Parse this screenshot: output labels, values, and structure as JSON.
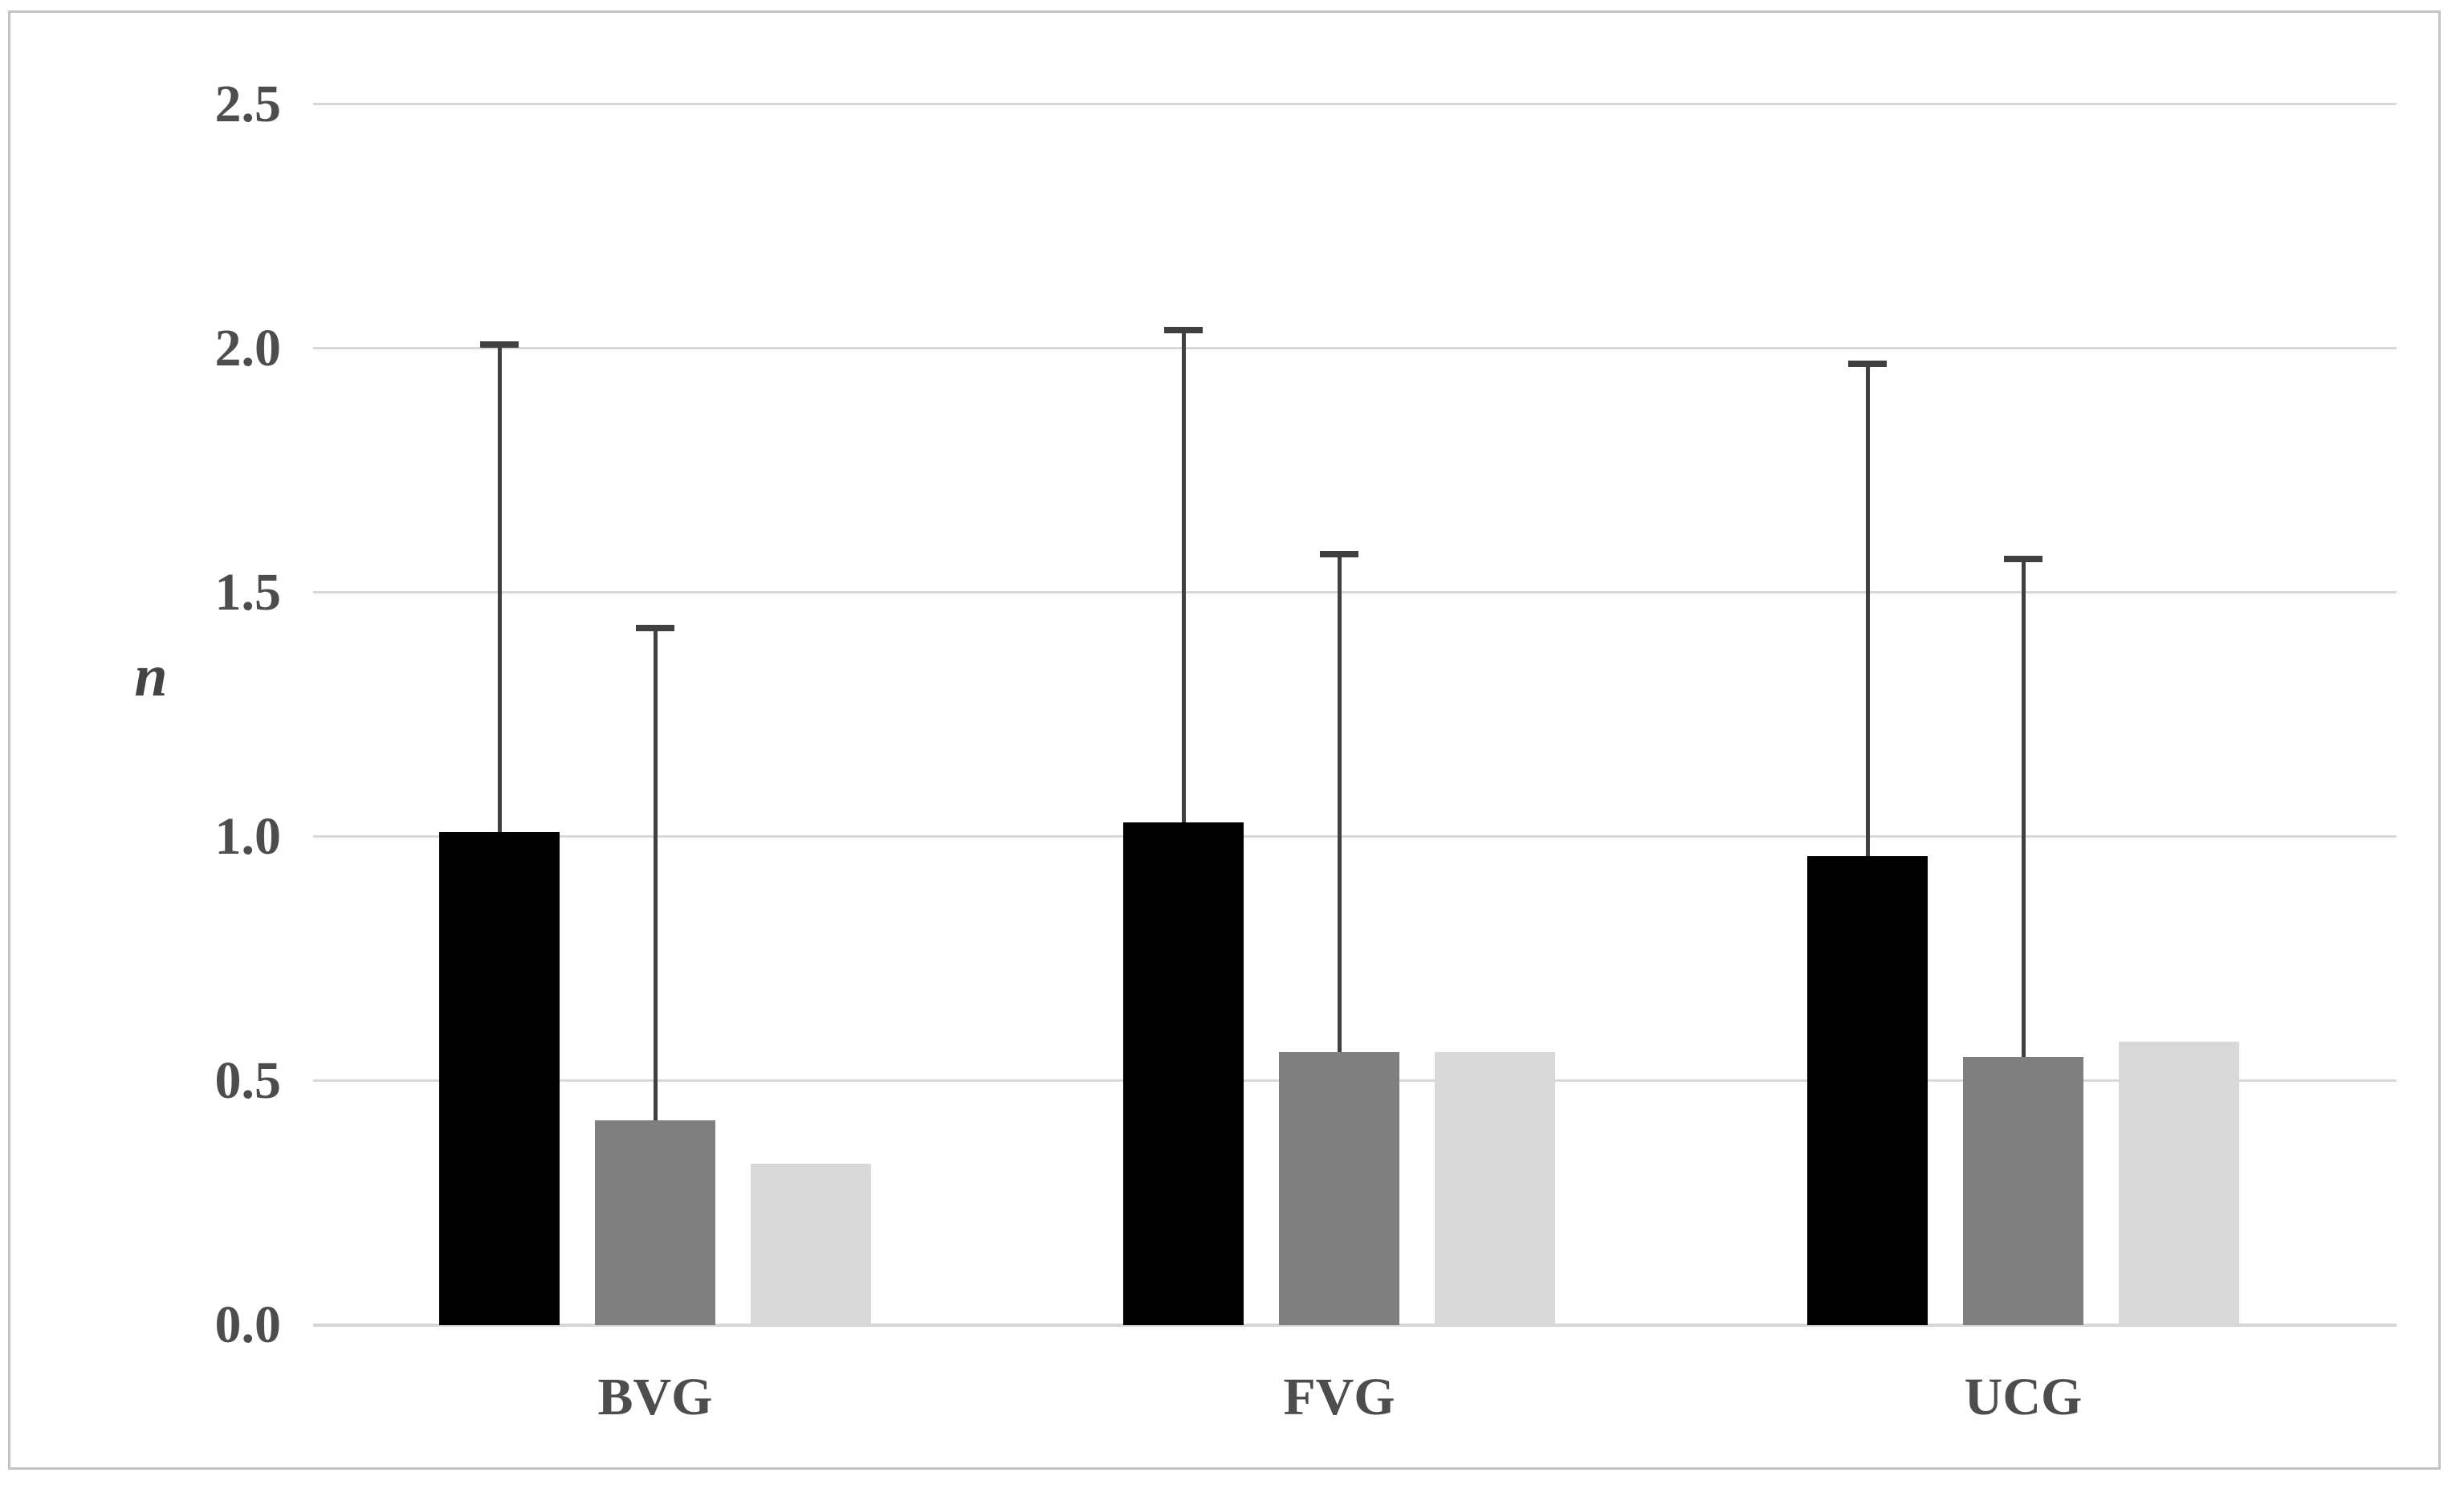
{
  "chart_data": {
    "type": "bar",
    "title": "",
    "xlabel": "",
    "ylabel": "n",
    "categories": [
      "BVG",
      "FVG",
      "UCG"
    ],
    "series": [
      {
        "name": "black-series",
        "color": "#000000",
        "values": [
          1.01,
          1.03,
          0.96
        ],
        "error_up": [
          1.0,
          1.01,
          1.01
        ]
      },
      {
        "name": "gray-series",
        "color": "#7f7f7f",
        "values": [
          0.42,
          0.56,
          0.55
        ],
        "error_up": [
          1.01,
          1.02,
          1.02
        ]
      },
      {
        "name": "light-gray-series",
        "color": "#d9d9d9",
        "values": [
          0.33,
          0.56,
          0.58
        ],
        "error_up": [
          null,
          null,
          null
        ]
      }
    ],
    "yticks": [
      "0.0",
      "0.5",
      "1.0",
      "1.5",
      "2.0",
      "2.5"
    ],
    "ylim": [
      0,
      2.5
    ],
    "grid": true,
    "legend_position": "none"
  },
  "colors": {
    "gridline": "#d9d9d9",
    "axis_line": "#d6d6d6",
    "error_bar": "#404040",
    "tick_text": "#4d4d4d",
    "frame_border": "#c3c3c3",
    "background": "#ffffff"
  }
}
